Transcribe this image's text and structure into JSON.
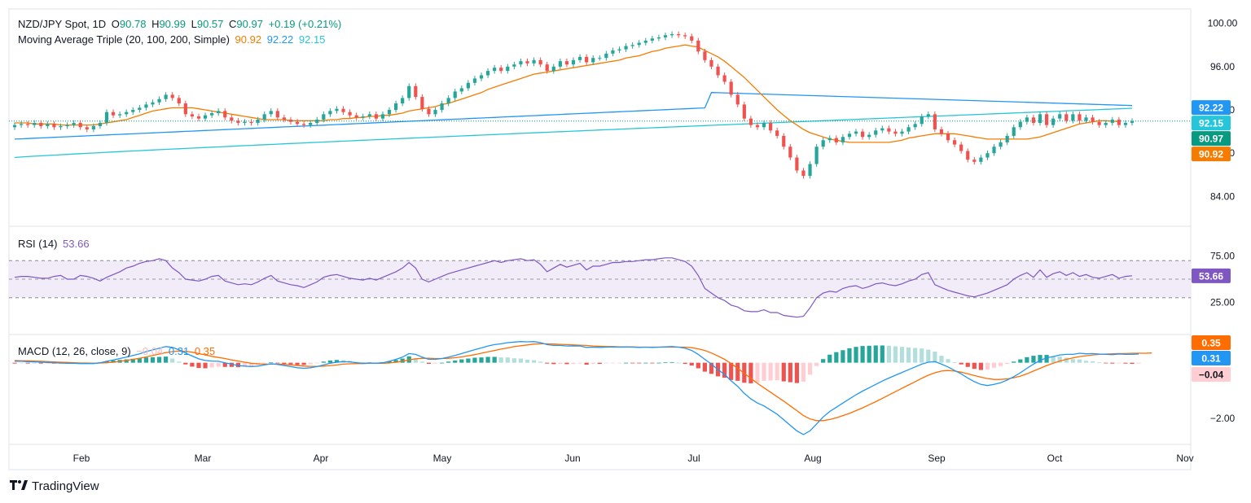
{
  "header": {
    "symbol": "NZD/JPY Spot, 1D",
    "o_label": "O",
    "o": "90.78",
    "h_label": "H",
    "h": "90.99",
    "l_label": "L",
    "l": "90.57",
    "c_label": "C",
    "c": "90.97",
    "change": "+0.19 (+0.21%)",
    "ma_label": "Moving Average Triple (20, 100, 200, Simple)",
    "ma20": "90.92",
    "ma100": "92.22",
    "ma200": "92.15"
  },
  "rsi_legend": {
    "label": "RSI (14)",
    "value": "53.66"
  },
  "macd_legend": {
    "label": "MACD (12, 26, close, 9)",
    "hist": "−0.04",
    "macd": "0.31",
    "signal": "0.35"
  },
  "brand": {
    "name": "TradingView"
  },
  "colors": {
    "up": "#26a69a",
    "down": "#ef5350",
    "ma20": "#f57c00",
    "ma100": "#2196f3",
    "ma200": "#26c6da",
    "rsi": "#7e57c2",
    "macd": "#2196f3",
    "signal": "#ff6d00"
  },
  "chart_data": {
    "type": "candlestick",
    "x_labels": [
      "Feb",
      "Mar",
      "Apr",
      "May",
      "Jun",
      "Jul",
      "Aug",
      "Sep",
      "Oct",
      "Nov"
    ],
    "price_axis": {
      "ylim": [
        82.0,
        100.5
      ],
      "ticks": [
        "100.00",
        "96.00",
        "92.00",
        "88.00",
        "84.00"
      ],
      "badges": [
        {
          "label": "92.22",
          "value": 92.22,
          "color": "#2196f3"
        },
        {
          "label": "92.15",
          "value": 92.15,
          "color": "#26c6da"
        },
        {
          "label": "90.97",
          "value": 90.97,
          "color": "#089981"
        },
        {
          "label": "90.92",
          "value": 90.92,
          "color": "#f57c00"
        }
      ],
      "last_price": 90.97
    },
    "closes": [
      90.6,
      90.7,
      90.6,
      90.8,
      90.5,
      90.7,
      90.4,
      90.5,
      90.6,
      90.8,
      90.4,
      90.2,
      90.5,
      90.8,
      91.8,
      91.5,
      91.6,
      91.8,
      92.0,
      92.2,
      92.5,
      92.7,
      93.0,
      93.4,
      93.1,
      92.6,
      91.6,
      91.4,
      91.2,
      91.5,
      91.7,
      91.9,
      91.3,
      91.0,
      90.8,
      90.9,
      90.8,
      91.1,
      91.6,
      91.9,
      91.3,
      91.1,
      90.9,
      90.7,
      90.6,
      90.8,
      91.1,
      91.6,
      91.9,
      92.1,
      91.8,
      91.5,
      91.3,
      91.4,
      91.6,
      91.2,
      91.6,
      92.0,
      92.6,
      93.1,
      94.2,
      93.2,
      92.1,
      91.6,
      92.0,
      92.6,
      93.1,
      93.7,
      94.0,
      94.5,
      94.9,
      95.2,
      95.6,
      95.9,
      95.6,
      96.0,
      96.2,
      96.5,
      96.3,
      96.6,
      96.2,
      95.6,
      96.0,
      96.5,
      96.2,
      96.6,
      96.9,
      96.4,
      96.8,
      96.8,
      97.2,
      97.5,
      97.6,
      97.9,
      98.0,
      98.2,
      98.4,
      98.6,
      98.7,
      98.9,
      99.0,
      98.9,
      98.8,
      98.4,
      97.4,
      96.6,
      96.0,
      95.2,
      94.6,
      93.4,
      92.5,
      91.2,
      90.6,
      90.4,
      90.8,
      90.1,
      89.6,
      88.6,
      87.6,
      86.4,
      85.9,
      87.0,
      88.6,
      89.2,
      89.4,
      89.0,
      89.5,
      89.8,
      90.0,
      89.5,
      89.7,
      90.1,
      90.3,
      90.0,
      89.8,
      90.0,
      90.4,
      90.7,
      91.4,
      91.6,
      90.2,
      89.8,
      89.2,
      88.8,
      88.2,
      87.4,
      87.2,
      87.6,
      88.0,
      88.6,
      89.0,
      89.6,
      90.4,
      90.9,
      91.3,
      90.8,
      91.6,
      90.6,
      91.2,
      91.6,
      91.0,
      91.6,
      91.0,
      91.3,
      90.9,
      90.6,
      90.8,
      91.1,
      90.6,
      90.8,
      90.97
    ],
    "ma20": [
      90.8,
      90.8,
      90.8,
      90.7,
      90.7,
      90.7,
      90.7,
      90.6,
      90.6,
      90.6,
      90.6,
      90.6,
      90.6,
      90.7,
      90.8,
      90.9,
      91.0,
      91.1,
      91.3,
      91.5,
      91.7,
      91.9,
      92.0,
      92.1,
      92.2,
      92.2,
      92.2,
      92.2,
      92.1,
      92.0,
      91.9,
      91.8,
      91.7,
      91.6,
      91.5,
      91.4,
      91.3,
      91.2,
      91.1,
      91.1,
      91.1,
      91.1,
      91.0,
      91.0,
      91.0,
      91.0,
      91.0,
      91.0,
      91.1,
      91.1,
      91.2,
      91.2,
      91.3,
      91.3,
      91.4,
      91.4,
      91.5,
      91.5,
      91.6,
      91.7,
      91.9,
      92.0,
      92.1,
      92.2,
      92.3,
      92.5,
      92.6,
      92.8,
      93.0,
      93.2,
      93.4,
      93.6,
      93.9,
      94.1,
      94.3,
      94.5,
      94.7,
      94.9,
      95.1,
      95.3,
      95.4,
      95.5,
      95.6,
      95.7,
      95.8,
      95.9,
      96.0,
      96.1,
      96.2,
      96.3,
      96.4,
      96.5,
      96.6,
      96.8,
      96.9,
      97.0,
      97.2,
      97.4,
      97.5,
      97.7,
      97.8,
      97.9,
      98.0,
      97.9,
      97.8,
      97.5,
      97.2,
      96.9,
      96.5,
      96.0,
      95.5,
      95.0,
      94.4,
      93.8,
      93.2,
      92.6,
      92.0,
      91.5,
      91.0,
      90.6,
      90.2,
      89.9,
      89.7,
      89.5,
      89.3,
      89.2,
      89.1,
      89.0,
      89.0,
      89.0,
      89.0,
      89.0,
      89.0,
      89.0,
      89.1,
      89.2,
      89.4,
      89.5,
      89.6,
      89.7,
      89.8,
      89.8,
      89.8,
      89.8,
      89.7,
      89.6,
      89.5,
      89.4,
      89.3,
      89.3,
      89.3,
      89.3,
      89.3,
      89.3,
      89.3,
      89.4,
      89.5,
      89.7,
      89.9,
      90.1,
      90.3,
      90.5,
      90.7,
      90.8,
      90.9,
      91.0,
      91.0,
      90.95,
      90.92
    ],
    "ma100_range": [
      89.3,
      92.22
    ],
    "ma200_range": [
      87.6,
      92.15
    ],
    "rsi": {
      "ylim": [
        0,
        100
      ],
      "ticks": [
        "75.00",
        "25.00"
      ],
      "bands": [
        70,
        50,
        30
      ],
      "values": [
        52,
        53,
        53,
        52,
        51,
        51,
        53,
        54,
        50,
        50,
        54,
        53,
        51,
        48,
        52,
        55,
        58,
        62,
        64,
        67,
        69,
        70,
        72,
        70,
        62,
        57,
        50,
        49,
        48,
        50,
        53,
        54,
        48,
        46,
        44,
        45,
        44,
        47,
        51,
        54,
        48,
        46,
        44,
        43,
        41,
        44,
        47,
        52,
        54,
        55,
        53,
        51,
        50,
        49,
        51,
        49,
        52,
        55,
        58,
        62,
        68,
        62,
        50,
        47,
        50,
        53,
        56,
        58,
        60,
        62,
        64,
        66,
        68,
        70,
        68,
        70,
        71,
        72,
        70,
        71,
        66,
        58,
        62,
        66,
        63,
        65,
        67,
        60,
        64,
        64,
        66,
        68,
        68,
        69,
        69,
        70,
        71,
        71,
        72,
        73,
        73,
        71,
        69,
        64,
        54,
        40,
        35,
        30,
        27,
        22,
        20,
        16,
        15,
        15,
        17,
        14,
        14,
        11,
        10,
        9,
        10,
        19,
        30,
        35,
        37,
        36,
        40,
        42,
        43,
        40,
        42,
        45,
        46,
        44,
        43,
        45,
        48,
        50,
        55,
        57,
        44,
        41,
        38,
        36,
        34,
        32,
        31,
        33,
        35,
        38,
        41,
        44,
        50,
        54,
        57,
        52,
        60,
        52,
        56,
        58,
        54,
        57,
        53,
        55,
        52,
        51,
        53,
        55,
        51,
        53,
        53.66
      ]
    },
    "macd": {
      "ylim": [
        -2.7,
        0.75
      ],
      "ticks": [
        "−2.00"
      ],
      "macd_values": [
        0.05,
        0.05,
        0.04,
        0.03,
        0.02,
        0.01,
        0.0,
        -0.01,
        -0.02,
        -0.02,
        -0.03,
        -0.03,
        -0.03,
        0.0,
        0.05,
        0.1,
        0.15,
        0.2,
        0.26,
        0.32,
        0.4,
        0.46,
        0.52,
        0.58,
        0.55,
        0.46,
        0.35,
        0.24,
        0.14,
        0.08,
        0.06,
        0.05,
        0.0,
        -0.05,
        -0.1,
        -0.12,
        -0.14,
        -0.12,
        -0.08,
        -0.04,
        -0.06,
        -0.1,
        -0.14,
        -0.18,
        -0.2,
        -0.18,
        -0.14,
        -0.08,
        -0.02,
        0.02,
        0.04,
        0.03,
        0.0,
        -0.02,
        -0.01,
        -0.02,
        0.0,
        0.05,
        0.12,
        0.2,
        0.33,
        0.3,
        0.2,
        0.12,
        0.12,
        0.15,
        0.2,
        0.26,
        0.33,
        0.4,
        0.47,
        0.53,
        0.6,
        0.65,
        0.68,
        0.72,
        0.74,
        0.76,
        0.75,
        0.76,
        0.72,
        0.65,
        0.62,
        0.62,
        0.6,
        0.6,
        0.6,
        0.55,
        0.56,
        0.55,
        0.56,
        0.57,
        0.56,
        0.57,
        0.56,
        0.55,
        0.56,
        0.55,
        0.56,
        0.57,
        0.58,
        0.56,
        0.52,
        0.44,
        0.3,
        0.12,
        -0.05,
        -0.25,
        -0.42,
        -0.65,
        -0.85,
        -1.1,
        -1.3,
        -1.45,
        -1.55,
        -1.7,
        -1.85,
        -2.05,
        -2.25,
        -2.45,
        -2.58,
        -2.45,
        -2.2,
        -1.95,
        -1.75,
        -1.6,
        -1.45,
        -1.3,
        -1.15,
        -1.02,
        -0.9,
        -0.78,
        -0.66,
        -0.55,
        -0.45,
        -0.35,
        -0.25,
        -0.15,
        -0.05,
        0.02,
        0.04,
        -0.05,
        -0.15,
        -0.28,
        -0.4,
        -0.55,
        -0.68,
        -0.78,
        -0.82,
        -0.78,
        -0.72,
        -0.62,
        -0.5,
        -0.36,
        -0.2,
        -0.05,
        0.08,
        0.18,
        0.22,
        0.28,
        0.3,
        0.3,
        0.34,
        0.32,
        0.33,
        0.31,
        0.3,
        0.29,
        0.31,
        0.3,
        0.3,
        0.31
      ],
      "signal_values": [
        0.08,
        0.07,
        0.07,
        0.06,
        0.05,
        0.04,
        0.03,
        0.02,
        0.01,
        0.0,
        -0.01,
        -0.01,
        -0.02,
        -0.01,
        0.0,
        0.02,
        0.05,
        0.08,
        0.12,
        0.16,
        0.21,
        0.26,
        0.31,
        0.36,
        0.4,
        0.42,
        0.41,
        0.38,
        0.33,
        0.28,
        0.23,
        0.19,
        0.15,
        0.1,
        0.06,
        0.02,
        -0.02,
        -0.04,
        -0.05,
        -0.05,
        -0.05,
        -0.06,
        -0.08,
        -0.1,
        -0.12,
        -0.13,
        -0.13,
        -0.12,
        -0.1,
        -0.08,
        -0.05,
        -0.04,
        -0.03,
        -0.03,
        -0.02,
        -0.02,
        -0.02,
        -0.01,
        0.02,
        0.05,
        0.1,
        0.14,
        0.16,
        0.16,
        0.15,
        0.15,
        0.16,
        0.18,
        0.21,
        0.25,
        0.29,
        0.34,
        0.39,
        0.44,
        0.49,
        0.53,
        0.58,
        0.61,
        0.64,
        0.67,
        0.68,
        0.68,
        0.67,
        0.66,
        0.65,
        0.64,
        0.63,
        0.62,
        0.6,
        0.59,
        0.58,
        0.58,
        0.57,
        0.57,
        0.57,
        0.56,
        0.56,
        0.56,
        0.56,
        0.56,
        0.56,
        0.56,
        0.56,
        0.54,
        0.5,
        0.44,
        0.35,
        0.24,
        0.12,
        -0.03,
        -0.2,
        -0.38,
        -0.56,
        -0.74,
        -0.9,
        -1.06,
        -1.22,
        -1.38,
        -1.55,
        -1.72,
        -1.9,
        -2.02,
        -2.08,
        -2.08,
        -2.04,
        -1.98,
        -1.9,
        -1.82,
        -1.72,
        -1.62,
        -1.51,
        -1.4,
        -1.28,
        -1.16,
        -1.04,
        -0.92,
        -0.8,
        -0.68,
        -0.56,
        -0.45,
        -0.36,
        -0.3,
        -0.28,
        -0.3,
        -0.34,
        -0.4,
        -0.46,
        -0.52,
        -0.57,
        -0.6,
        -0.6,
        -0.58,
        -0.54,
        -0.48,
        -0.4,
        -0.3,
        -0.2,
        -0.1,
        -0.02,
        0.06,
        0.12,
        0.17,
        0.22,
        0.25,
        0.28,
        0.3,
        0.31,
        0.32,
        0.33,
        0.33,
        0.34,
        0.34,
        0.34,
        0.35
      ]
    }
  }
}
